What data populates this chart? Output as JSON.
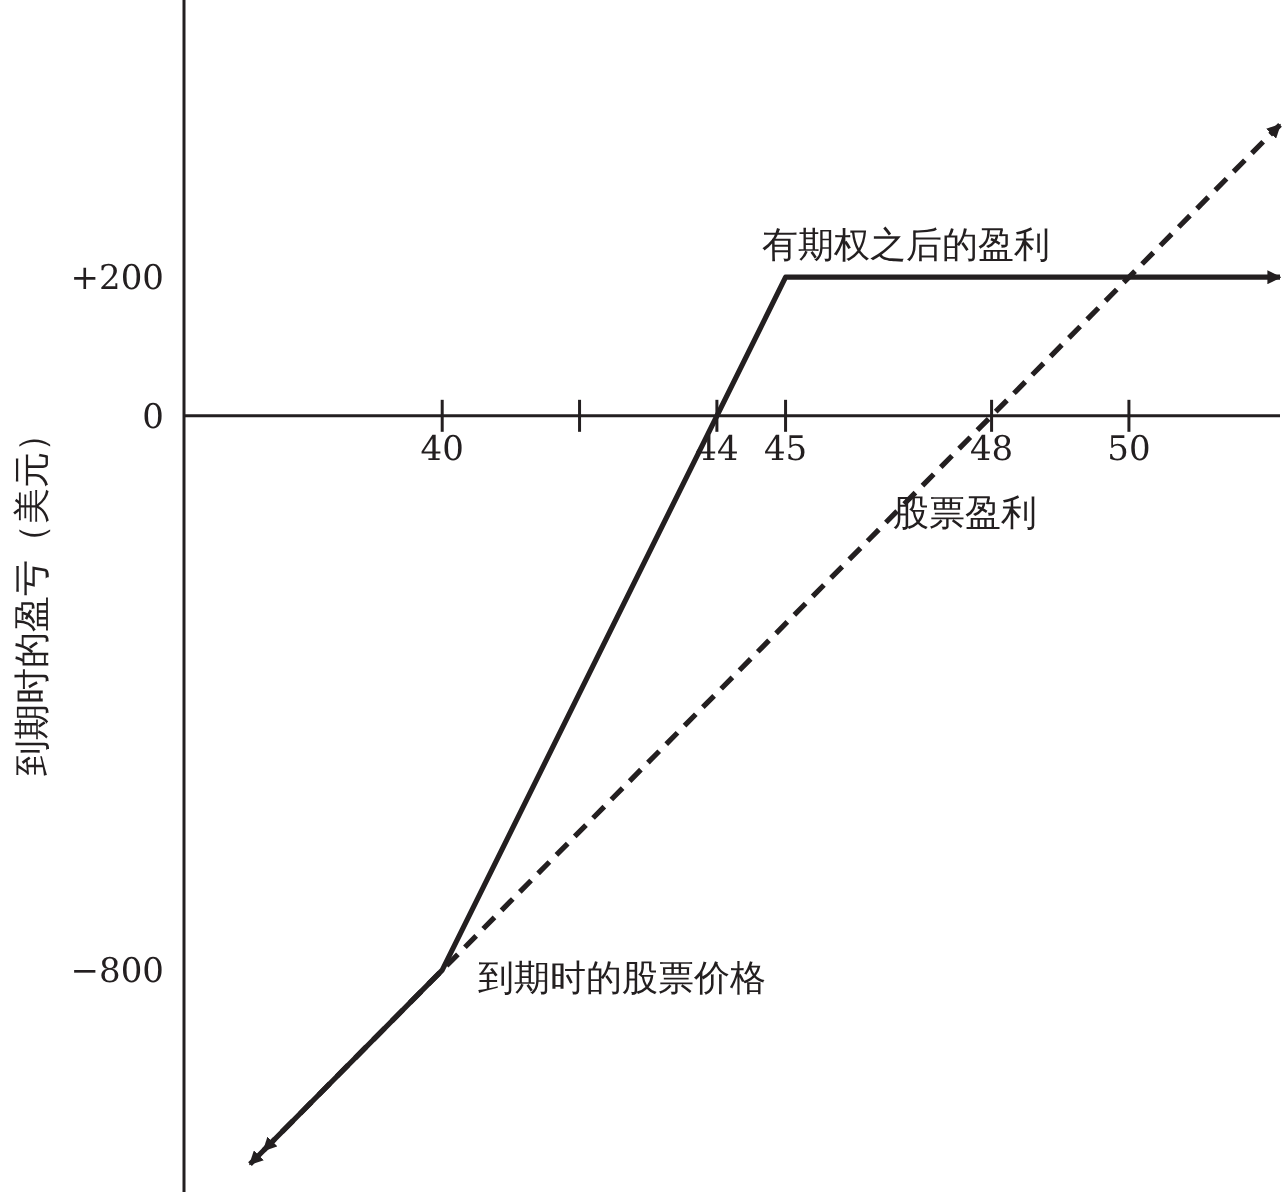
{
  "chart_data": {
    "type": "line",
    "xlabel": "到期时的股票价格",
    "ylabel": "到期时的盈亏（美元）",
    "xlim": [
      36.24,
      52.2
    ],
    "ylim": [
      -1120,
      600
    ],
    "xticks": [
      40,
      {
        "value": 42,
        "label": null
      },
      44,
      45,
      48,
      50
    ],
    "yticks": [
      {
        "value": 200,
        "label": "+200"
      },
      0,
      {
        "value": -800,
        "label": "−800"
      }
    ],
    "grid": false,
    "marker": "none",
    "series": [
      {
        "name": "有期权之后的盈利",
        "color": "#231f20",
        "line_style": "solid",
        "x": [
          37.2,
          40,
          45,
          52.2
        ],
        "values": [
          -1080,
          -800,
          200,
          200
        ]
      },
      {
        "name": "股票盈利",
        "color": "#231f20",
        "line_style": "dashed",
        "x": [
          37.4,
          52.2
        ],
        "values": [
          -1060,
          420
        ]
      }
    ]
  }
}
